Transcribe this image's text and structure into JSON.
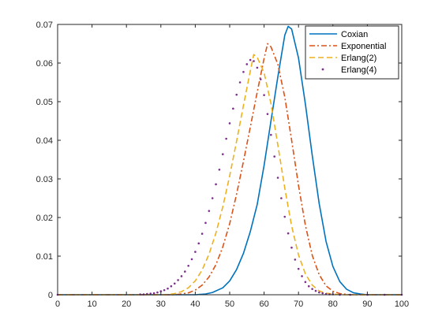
{
  "chart_data": {
    "type": "line",
    "title": "",
    "xlabel": "",
    "ylabel": "",
    "xlim": [
      0,
      100
    ],
    "ylim": [
      0,
      0.07
    ],
    "x_ticks": [
      0,
      10,
      20,
      30,
      40,
      50,
      60,
      70,
      80,
      90,
      100
    ],
    "y_ticks": [
      0,
      0.01,
      0.02,
      0.03,
      0.04,
      0.05,
      0.06,
      0.07
    ],
    "x_tick_labels": [
      "0",
      "10",
      "20",
      "30",
      "40",
      "50",
      "60",
      "70",
      "80",
      "90",
      "100"
    ],
    "y_tick_labels": [
      "0",
      "0.01",
      "0.02",
      "0.03",
      "0.04",
      "0.05",
      "0.06",
      "0.07"
    ],
    "grid": false,
    "legend_position": "top-right",
    "series": [
      {
        "name": "Coxian",
        "style": "solid",
        "color": "#0072BD",
        "x": [
          0,
          40,
          43,
          45,
          48,
          50,
          52,
          54,
          56,
          58,
          60,
          62,
          64,
          66,
          67,
          68,
          70,
          72,
          74,
          76,
          78,
          80,
          82,
          84,
          86,
          88,
          90,
          100
        ],
        "y": [
          0,
          0,
          0.0002,
          0.0006,
          0.0018,
          0.0036,
          0.0065,
          0.0107,
          0.0164,
          0.0234,
          0.0335,
          0.045,
          0.0564,
          0.0672,
          0.0695,
          0.0688,
          0.0613,
          0.0494,
          0.0361,
          0.0236,
          0.0138,
          0.0073,
          0.0034,
          0.0014,
          0.0005,
          0.0002,
          0,
          0
        ]
      },
      {
        "name": "Exponential",
        "style": "dashdot",
        "color": "#D95319",
        "x": [
          0,
          34,
          36,
          38,
          40,
          42,
          44,
          46,
          48,
          50,
          52,
          54,
          56,
          58,
          60,
          61,
          62,
          64,
          66,
          68,
          70,
          72,
          74,
          76,
          78,
          80,
          82,
          85,
          100
        ],
        "y": [
          0,
          0,
          0.0002,
          0.0005,
          0.0012,
          0.0025,
          0.0046,
          0.0078,
          0.0124,
          0.0184,
          0.026,
          0.0345,
          0.0435,
          0.0525,
          0.0612,
          0.065,
          0.0642,
          0.0597,
          0.0512,
          0.04,
          0.0283,
          0.018,
          0.0102,
          0.0052,
          0.0023,
          0.0009,
          0.0003,
          0,
          0
        ]
      },
      {
        "name": "Erlang(2)",
        "style": "dashed",
        "color": "#EDB120",
        "x": [
          0,
          32,
          34,
          36,
          38,
          40,
          42,
          44,
          46,
          48,
          50,
          52,
          54,
          56,
          57,
          58,
          60,
          62,
          64,
          66,
          68,
          70,
          72,
          74,
          76,
          78,
          82,
          100
        ],
        "y": [
          0,
          0,
          0.0003,
          0.0008,
          0.0018,
          0.0036,
          0.0064,
          0.0105,
          0.016,
          0.0228,
          0.0308,
          0.0397,
          0.049,
          0.058,
          0.0622,
          0.0615,
          0.0575,
          0.0495,
          0.0388,
          0.0276,
          0.0178,
          0.0103,
          0.0054,
          0.0025,
          0.001,
          0.0004,
          0,
          0
        ]
      },
      {
        "name": "Erlang(4)",
        "style": "dotted",
        "color": "#7E2F8E",
        "x": [
          0,
          24,
          25,
          26,
          27,
          28,
          29,
          30,
          31,
          32,
          33,
          34,
          35,
          36,
          37,
          38,
          39,
          40,
          41,
          42,
          43,
          44,
          45,
          46,
          47,
          48,
          49,
          50,
          51,
          52,
          53,
          54,
          55,
          56,
          57,
          58,
          59,
          60,
          61,
          62,
          63,
          64,
          65,
          66,
          67,
          68,
          69,
          70,
          71,
          72,
          73,
          74,
          75,
          76,
          77,
          78,
          79,
          80,
          82,
          85,
          90,
          95,
          100
        ],
        "y": [
          0,
          0.0001,
          0.0001,
          0.0002,
          0.0003,
          0.0004,
          0.0006,
          0.0009,
          0.0012,
          0.0016,
          0.0022,
          0.0029,
          0.0038,
          0.0048,
          0.006,
          0.0075,
          0.0092,
          0.0111,
          0.0133,
          0.0158,
          0.0186,
          0.0217,
          0.025,
          0.0286,
          0.0324,
          0.0364,
          0.0404,
          0.0444,
          0.0482,
          0.0518,
          0.055,
          0.0577,
          0.0597,
          0.0608,
          0.0605,
          0.0588,
          0.0558,
          0.0517,
          0.0468,
          0.0414,
          0.0358,
          0.0303,
          0.025,
          0.0202,
          0.0159,
          0.0122,
          0.0091,
          0.0067,
          0.0048,
          0.0033,
          0.0022,
          0.0015,
          0.001,
          0.0006,
          0.0004,
          0.0002,
          0.0001,
          0.0001,
          0,
          0,
          0,
          0,
          0
        ]
      }
    ]
  }
}
